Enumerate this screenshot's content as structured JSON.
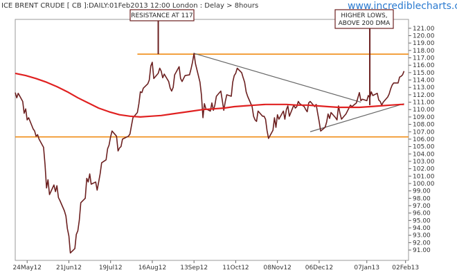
{
  "header": {
    "title": "ICE BRENT CRUDE [ CB ]:DAILY:01Feb2013 12:00 London : Delay > 8hours",
    "site": "www.incrediblecharts.com"
  },
  "chart_data": {
    "type": "line",
    "ylim": [
      90,
      122
    ],
    "y_axis_position": "right",
    "ytick_labels": [
      "121.00",
      "120.00",
      "119.00",
      "118.00",
      "117.00",
      "116.00",
      "115.00",
      "114.00",
      "113.00",
      "112.00",
      "111.00",
      "110.00",
      "109.00",
      "108.00",
      "107.00",
      "106.00",
      "105.00",
      "104.00",
      "103.00",
      "102.00",
      "101.00",
      "100.00",
      "99.00",
      "98.00",
      "97.00",
      "96.00",
      "95.00",
      "94.00",
      "93.00",
      "92.00",
      "91.00"
    ],
    "xtick_labels": [
      "24May12",
      "21Jun12",
      "19Jul12",
      "16Aug12",
      "13Sep12",
      "11Oct12",
      "08Nov12",
      "06Dec12",
      "07Jan13",
      "02Feb13"
    ],
    "x_range": [
      "2012-05-16",
      "2013-02-04"
    ],
    "series": [
      {
        "color": "#6b1f1f",
        "points": [
          [
            "2012-05-16",
            112.3
          ],
          [
            "2012-05-17",
            111.6
          ],
          [
            "2012-05-18",
            112.2
          ],
          [
            "2012-05-21",
            111.1
          ],
          [
            "2012-05-22",
            109.5
          ],
          [
            "2012-05-23",
            110.1
          ],
          [
            "2012-05-24",
            108.6
          ],
          [
            "2012-05-25",
            108.9
          ],
          [
            "2012-05-28",
            107.4
          ],
          [
            "2012-05-29",
            107.1
          ],
          [
            "2012-05-30",
            106.4
          ],
          [
            "2012-05-31",
            106.6
          ],
          [
            "2012-06-01",
            106.0
          ],
          [
            "2012-06-04",
            104.9
          ],
          [
            "2012-06-05",
            102.6
          ],
          [
            "2012-06-06",
            99.4
          ],
          [
            "2012-06-07",
            100.5
          ],
          [
            "2012-06-08",
            98.5
          ],
          [
            "2012-06-11",
            99.8
          ],
          [
            "2012-06-12",
            98.9
          ],
          [
            "2012-06-13",
            99.7
          ],
          [
            "2012-06-14",
            98.1
          ],
          [
            "2012-06-15",
            97.7
          ],
          [
            "2012-06-18",
            96.3
          ],
          [
            "2012-06-19",
            95.6
          ],
          [
            "2012-06-20",
            93.9
          ],
          [
            "2012-06-21",
            92.9
          ],
          [
            "2012-06-22",
            90.6
          ],
          [
            "2012-06-25",
            91.2
          ],
          [
            "2012-06-26",
            93.1
          ],
          [
            "2012-06-27",
            93.6
          ],
          [
            "2012-06-28",
            95.0
          ],
          [
            "2012-06-29",
            97.4
          ],
          [
            "2012-07-02",
            98.0
          ],
          [
            "2012-07-03",
            100.7
          ],
          [
            "2012-07-04",
            100.2
          ],
          [
            "2012-07-05",
            101.3
          ],
          [
            "2012-07-06",
            99.9
          ],
          [
            "2012-07-09",
            100.2
          ],
          [
            "2012-07-10",
            99.1
          ],
          [
            "2012-07-11",
            100.2
          ],
          [
            "2012-07-12",
            101.3
          ],
          [
            "2012-07-13",
            102.8
          ],
          [
            "2012-07-16",
            103.2
          ],
          [
            "2012-07-17",
            104.7
          ],
          [
            "2012-07-18",
            105.2
          ],
          [
            "2012-07-19",
            106.3
          ],
          [
            "2012-07-20",
            107.1
          ],
          [
            "2012-07-23",
            106.4
          ],
          [
            "2012-07-24",
            104.4
          ],
          [
            "2012-07-25",
            104.8
          ],
          [
            "2012-07-26",
            105.0
          ],
          [
            "2012-07-27",
            106.0
          ],
          [
            "2012-07-30",
            106.3
          ],
          [
            "2012-07-31",
            106.4
          ],
          [
            "2012-08-01",
            106.7
          ],
          [
            "2012-08-02",
            107.8
          ],
          [
            "2012-08-03",
            108.9
          ],
          [
            "2012-08-06",
            109.6
          ],
          [
            "2012-08-07",
            110.8
          ],
          [
            "2012-08-08",
            112.4
          ],
          [
            "2012-08-09",
            112.3
          ],
          [
            "2012-08-10",
            112.9
          ],
          [
            "2012-08-13",
            113.5
          ],
          [
            "2012-08-14",
            114.0
          ],
          [
            "2012-08-15",
            115.9
          ],
          [
            "2012-08-16",
            116.4
          ],
          [
            "2012-08-17",
            114.2
          ],
          [
            "2012-08-20",
            114.9
          ],
          [
            "2012-08-21",
            115.6
          ],
          [
            "2012-08-22",
            115.2
          ],
          [
            "2012-08-23",
            114.3
          ],
          [
            "2012-08-24",
            114.8
          ],
          [
            "2012-08-27",
            113.8
          ],
          [
            "2012-08-28",
            112.9
          ],
          [
            "2012-08-29",
            112.5
          ],
          [
            "2012-08-30",
            113.0
          ],
          [
            "2012-08-31",
            114.7
          ],
          [
            "2012-09-03",
            115.8
          ],
          [
            "2012-09-04",
            114.2
          ],
          [
            "2012-09-05",
            113.8
          ],
          [
            "2012-09-06",
            114.2
          ],
          [
            "2012-09-07",
            114.6
          ],
          [
            "2012-09-10",
            114.7
          ],
          [
            "2012-09-11",
            115.5
          ],
          [
            "2012-09-12",
            116.4
          ],
          [
            "2012-09-13",
            117.6
          ],
          [
            "2012-09-14",
            116.2
          ],
          [
            "2012-09-17",
            113.7
          ],
          [
            "2012-09-18",
            112.0
          ],
          [
            "2012-09-19",
            108.9
          ],
          [
            "2012-09-20",
            110.8
          ],
          [
            "2012-09-21",
            110.1
          ],
          [
            "2012-09-24",
            109.8
          ],
          [
            "2012-09-25",
            110.9
          ],
          [
            "2012-09-26",
            109.9
          ],
          [
            "2012-09-27",
            110.6
          ],
          [
            "2012-09-28",
            111.8
          ],
          [
            "2012-10-01",
            112.5
          ],
          [
            "2012-10-02",
            111.2
          ],
          [
            "2012-10-03",
            109.9
          ],
          [
            "2012-10-04",
            111.1
          ],
          [
            "2012-10-05",
            112.0
          ],
          [
            "2012-10-08",
            111.8
          ],
          [
            "2012-10-09",
            113.7
          ],
          [
            "2012-10-10",
            114.6
          ],
          [
            "2012-10-11",
            114.9
          ],
          [
            "2012-10-12",
            115.6
          ],
          [
            "2012-10-15",
            115.0
          ],
          [
            "2012-10-16",
            114.3
          ],
          [
            "2012-10-17",
            113.7
          ],
          [
            "2012-10-18",
            112.4
          ],
          [
            "2012-10-19",
            111.8
          ],
          [
            "2012-10-22",
            110.4
          ],
          [
            "2012-10-23",
            109.1
          ],
          [
            "2012-10-24",
            108.6
          ],
          [
            "2012-10-25",
            108.4
          ],
          [
            "2012-10-26",
            109.8
          ],
          [
            "2012-10-29",
            109.1
          ],
          [
            "2012-10-30",
            109.1
          ],
          [
            "2012-10-31",
            108.7
          ],
          [
            "2012-11-01",
            107.2
          ],
          [
            "2012-11-02",
            106.1
          ],
          [
            "2012-11-05",
            107.2
          ],
          [
            "2012-11-06",
            108.9
          ],
          [
            "2012-11-07",
            107.6
          ],
          [
            "2012-11-08",
            109.3
          ],
          [
            "2012-11-09",
            108.7
          ],
          [
            "2012-11-12",
            109.8
          ],
          [
            "2012-11-13",
            108.7
          ],
          [
            "2012-11-14",
            110.0
          ],
          [
            "2012-11-15",
            110.5
          ],
          [
            "2012-11-16",
            109.1
          ],
          [
            "2012-11-19",
            110.6
          ],
          [
            "2012-11-20",
            110.2
          ],
          [
            "2012-11-21",
            110.4
          ],
          [
            "2012-11-22",
            111.1
          ],
          [
            "2012-11-23",
            110.8
          ],
          [
            "2012-11-26",
            110.4
          ],
          [
            "2012-11-27",
            110.0
          ],
          [
            "2012-11-28",
            109.7
          ],
          [
            "2012-11-29",
            110.9
          ],
          [
            "2012-11-30",
            111.1
          ],
          [
            "2012-12-03",
            110.4
          ],
          [
            "2012-12-04",
            110.7
          ],
          [
            "2012-12-05",
            109.5
          ],
          [
            "2012-12-06",
            108.4
          ],
          [
            "2012-12-07",
            107.1
          ],
          [
            "2012-12-10",
            107.6
          ],
          [
            "2012-12-11",
            108.3
          ],
          [
            "2012-12-12",
            109.4
          ],
          [
            "2012-12-13",
            108.8
          ],
          [
            "2012-12-14",
            109.6
          ],
          [
            "2012-12-17",
            108.9
          ],
          [
            "2012-12-18",
            108.6
          ],
          [
            "2012-12-19",
            110.5
          ],
          [
            "2012-12-20",
            109.5
          ],
          [
            "2012-12-21",
            108.7
          ],
          [
            "2012-12-24",
            109.4
          ],
          [
            "2012-12-27",
            110.6
          ],
          [
            "2012-12-28",
            110.4
          ],
          [
            "2012-12-31",
            110.9
          ],
          [
            "2013-01-02",
            112.3
          ],
          [
            "2013-01-03",
            111.2
          ],
          [
            "2013-01-04",
            111.4
          ],
          [
            "2013-01-07",
            111.2
          ],
          [
            "2013-01-08",
            111.9
          ],
          [
            "2013-01-09",
            111.6
          ],
          [
            "2013-01-10",
            112.4
          ],
          [
            "2013-01-11",
            111.9
          ],
          [
            "2013-01-14",
            112.2
          ],
          [
            "2013-01-15",
            111.3
          ],
          [
            "2013-01-16",
            111.1
          ],
          [
            "2013-01-17",
            110.6
          ],
          [
            "2013-01-18",
            111.0
          ],
          [
            "2013-01-21",
            111.7
          ],
          [
            "2013-01-22",
            112.1
          ],
          [
            "2013-01-23",
            112.8
          ],
          [
            "2013-01-24",
            113.3
          ],
          [
            "2013-01-25",
            113.6
          ],
          [
            "2013-01-28",
            113.6
          ],
          [
            "2013-01-29",
            114.4
          ],
          [
            "2013-01-30",
            114.5
          ],
          [
            "2013-01-31",
            114.7
          ],
          [
            "2013-02-01",
            115.2
          ]
        ]
      },
      {
        "color": "#e02020",
        "points": [
          [
            "2012-05-16",
            114.9
          ],
          [
            "2012-05-23",
            114.6
          ],
          [
            "2012-05-30",
            114.2
          ],
          [
            "2012-06-06",
            113.7
          ],
          [
            "2012-06-13",
            113.1
          ],
          [
            "2012-06-20",
            112.4
          ],
          [
            "2012-06-27",
            111.6
          ],
          [
            "2012-07-04",
            110.9
          ],
          [
            "2012-07-11",
            110.2
          ],
          [
            "2012-07-18",
            109.7
          ],
          [
            "2012-07-25",
            109.3
          ],
          [
            "2012-08-01",
            109.1
          ],
          [
            "2012-08-08",
            109.0
          ],
          [
            "2012-08-15",
            109.1
          ],
          [
            "2012-08-22",
            109.2
          ],
          [
            "2012-08-29",
            109.4
          ],
          [
            "2012-09-05",
            109.6
          ],
          [
            "2012-09-12",
            109.8
          ],
          [
            "2012-09-19",
            110.0
          ],
          [
            "2012-09-26",
            110.1
          ],
          [
            "2012-10-03",
            110.2
          ],
          [
            "2012-10-10",
            110.4
          ],
          [
            "2012-10-17",
            110.5
          ],
          [
            "2012-10-24",
            110.6
          ],
          [
            "2012-10-31",
            110.7
          ],
          [
            "2012-11-07",
            110.7
          ],
          [
            "2012-11-14",
            110.7
          ],
          [
            "2012-11-21",
            110.6
          ],
          [
            "2012-11-28",
            110.6
          ],
          [
            "2012-12-05",
            110.5
          ],
          [
            "2012-12-12",
            110.4
          ],
          [
            "2012-12-19",
            110.3
          ],
          [
            "2012-12-26",
            110.3
          ],
          [
            "2013-01-02",
            110.3
          ],
          [
            "2013-01-09",
            110.4
          ],
          [
            "2013-01-16",
            110.5
          ],
          [
            "2013-01-23",
            110.6
          ],
          [
            "2013-01-30",
            110.7
          ],
          [
            "2013-02-01",
            110.7
          ]
        ]
      }
    ],
    "horizontal_lines": [
      {
        "y": 117.5,
        "color": "#f08c14",
        "x_start": "2012-08-06",
        "x_end": "2013-02-04"
      },
      {
        "y": 106.3,
        "color": "#f08c14",
        "x_start": "2012-05-16",
        "x_end": "2013-02-04"
      }
    ],
    "trendlines": [
      {
        "color": "#666666",
        "from": [
          "2012-09-13",
          117.6
        ],
        "to": [
          "2013-01-03",
          111.0
        ]
      },
      {
        "color": "#666666",
        "from": [
          "2012-11-30",
          107.0
        ],
        "to": [
          "2013-02-01",
          110.8
        ]
      }
    ],
    "annotations": [
      {
        "text": [
          "RESISTANCE AT 117"
        ],
        "pointer_x": "2012-08-20",
        "pointer_y": 117.5
      },
      {
        "text": [
          "HIGHER LOWS,",
          "ABOVE 200 DMA"
        ],
        "pointer_x": "2013-01-09",
        "pointer_y": 110.6
      }
    ]
  }
}
